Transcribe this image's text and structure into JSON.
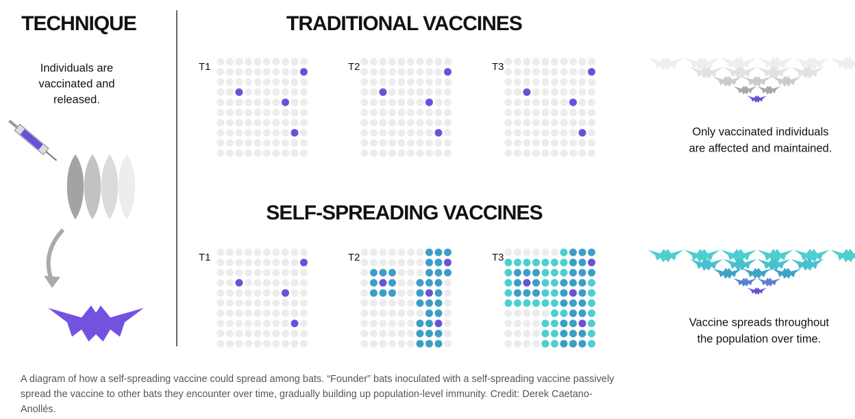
{
  "technique": {
    "title": "TECHNIQUE",
    "description": [
      "Individuals are",
      "vaccinated and",
      "released."
    ]
  },
  "traditional": {
    "title": "TRADITIONAL VACCINES",
    "labels": [
      "T1",
      "T2",
      "T3"
    ],
    "note": [
      "Only vaccinated individuals",
      "are affected and maintained."
    ]
  },
  "self_spreading": {
    "title": "SELF-SPREADING VACCINES",
    "labels": [
      "T1",
      "T2",
      "T3"
    ],
    "note": [
      "Vaccine spreads throughout",
      "the population over time."
    ]
  },
  "caption": [
    "A diagram of how a self-spreading vaccine could spread among bats. “Founder” bats inoculated with a self-spreading vaccine passively",
    "spread the vaccine to other bats they encounter over time, gradually building up population-level immunity. Credit: Derek Caetano-",
    "Anollés."
  ]
}
